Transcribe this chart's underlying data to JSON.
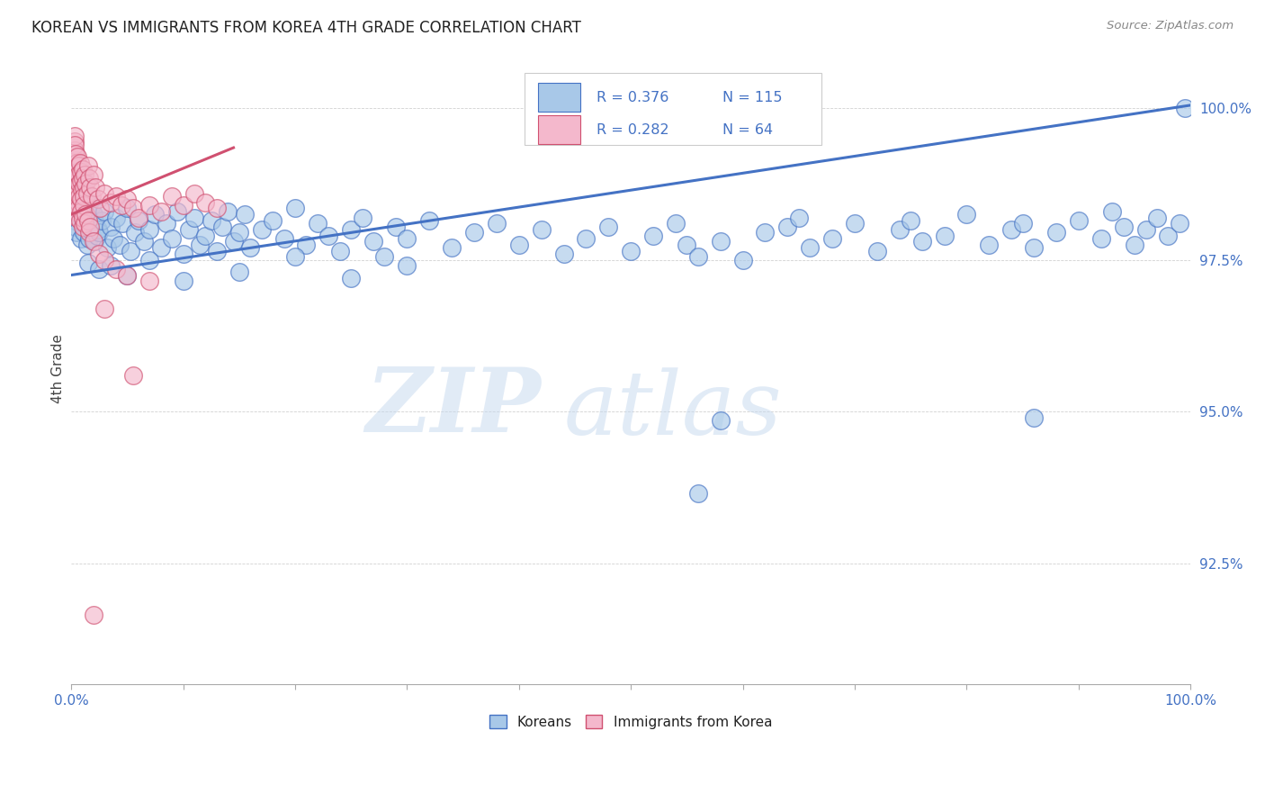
{
  "title": "KOREAN VS IMMIGRANTS FROM KOREA 4TH GRADE CORRELATION CHART",
  "source": "Source: ZipAtlas.com",
  "ylabel": "4th Grade",
  "legend_label1": "Koreans",
  "legend_label2": "Immigrants from Korea",
  "r1": 0.376,
  "n1": 115,
  "r2": 0.282,
  "n2": 64,
  "color1": "#a8c8e8",
  "color2": "#f4b8cc",
  "line_color1": "#4472c4",
  "line_color2": "#d05070",
  "ytick_values": [
    92.5,
    95.0,
    97.5,
    100.0
  ],
  "xlim": [
    0.0,
    100.0
  ],
  "ylim": [
    90.5,
    100.9
  ],
  "watermark_zip": "ZIP",
  "watermark_atlas": "atlas",
  "blue_line": [
    [
      0.0,
      97.25
    ],
    [
      100.0,
      100.05
    ]
  ],
  "pink_line": [
    [
      0.0,
      98.25
    ],
    [
      14.5,
      99.35
    ]
  ],
  "blue_scatter": [
    [
      0.3,
      98.15
    ],
    [
      0.4,
      98.05
    ],
    [
      0.5,
      97.95
    ],
    [
      0.6,
      98.25
    ],
    [
      0.7,
      98.45
    ],
    [
      0.8,
      98.35
    ],
    [
      0.9,
      97.85
    ],
    [
      1.0,
      98.1
    ],
    [
      1.1,
      97.95
    ],
    [
      1.2,
      98.3
    ],
    [
      1.3,
      98.2
    ],
    [
      1.4,
      97.75
    ],
    [
      1.5,
      98.15
    ],
    [
      1.6,
      97.85
    ],
    [
      1.7,
      98.0
    ],
    [
      1.8,
      98.4
    ],
    [
      2.0,
      98.25
    ],
    [
      2.1,
      97.8
    ],
    [
      2.2,
      98.1
    ],
    [
      2.3,
      97.9
    ],
    [
      2.4,
      98.0
    ],
    [
      2.5,
      97.95
    ],
    [
      2.7,
      98.15
    ],
    [
      3.0,
      98.3
    ],
    [
      3.2,
      97.7
    ],
    [
      3.5,
      98.05
    ],
    [
      3.8,
      97.85
    ],
    [
      4.0,
      98.2
    ],
    [
      4.3,
      97.75
    ],
    [
      4.6,
      98.1
    ],
    [
      5.0,
      98.35
    ],
    [
      5.3,
      97.65
    ],
    [
      5.7,
      97.95
    ],
    [
      6.0,
      98.15
    ],
    [
      6.5,
      97.8
    ],
    [
      7.0,
      98.0
    ],
    [
      7.5,
      98.25
    ],
    [
      8.0,
      97.7
    ],
    [
      8.5,
      98.1
    ],
    [
      9.0,
      97.85
    ],
    [
      9.5,
      98.3
    ],
    [
      10.0,
      97.6
    ],
    [
      10.5,
      98.0
    ],
    [
      11.0,
      98.2
    ],
    [
      11.5,
      97.75
    ],
    [
      12.0,
      97.9
    ],
    [
      12.5,
      98.15
    ],
    [
      13.0,
      97.65
    ],
    [
      13.5,
      98.05
    ],
    [
      14.0,
      98.3
    ],
    [
      14.5,
      97.8
    ],
    [
      15.0,
      97.95
    ],
    [
      15.5,
      98.25
    ],
    [
      16.0,
      97.7
    ],
    [
      17.0,
      98.0
    ],
    [
      18.0,
      98.15
    ],
    [
      19.0,
      97.85
    ],
    [
      20.0,
      98.35
    ],
    [
      21.0,
      97.75
    ],
    [
      22.0,
      98.1
    ],
    [
      23.0,
      97.9
    ],
    [
      24.0,
      97.65
    ],
    [
      25.0,
      98.0
    ],
    [
      26.0,
      98.2
    ],
    [
      27.0,
      97.8
    ],
    [
      28.0,
      97.55
    ],
    [
      29.0,
      98.05
    ],
    [
      30.0,
      97.85
    ],
    [
      32.0,
      98.15
    ],
    [
      34.0,
      97.7
    ],
    [
      36.0,
      97.95
    ],
    [
      38.0,
      98.1
    ],
    [
      40.0,
      97.75
    ],
    [
      42.0,
      98.0
    ],
    [
      44.0,
      97.6
    ],
    [
      46.0,
      97.85
    ],
    [
      48.0,
      98.05
    ],
    [
      50.0,
      97.65
    ],
    [
      52.0,
      97.9
    ],
    [
      54.0,
      98.1
    ],
    [
      55.0,
      97.75
    ],
    [
      56.0,
      97.55
    ],
    [
      58.0,
      97.8
    ],
    [
      60.0,
      97.5
    ],
    [
      62.0,
      97.95
    ],
    [
      64.0,
      98.05
    ],
    [
      65.0,
      98.2
    ],
    [
      66.0,
      97.7
    ],
    [
      68.0,
      97.85
    ],
    [
      70.0,
      98.1
    ],
    [
      72.0,
      97.65
    ],
    [
      74.0,
      98.0
    ],
    [
      75.0,
      98.15
    ],
    [
      76.0,
      97.8
    ],
    [
      78.0,
      97.9
    ],
    [
      80.0,
      98.25
    ],
    [
      82.0,
      97.75
    ],
    [
      84.0,
      98.0
    ],
    [
      85.0,
      98.1
    ],
    [
      86.0,
      97.7
    ],
    [
      88.0,
      97.95
    ],
    [
      90.0,
      98.15
    ],
    [
      92.0,
      97.85
    ],
    [
      93.0,
      98.3
    ],
    [
      94.0,
      98.05
    ],
    [
      95.0,
      97.75
    ],
    [
      96.0,
      98.0
    ],
    [
      97.0,
      98.2
    ],
    [
      98.0,
      97.9
    ],
    [
      99.0,
      98.1
    ],
    [
      99.5,
      100.0
    ],
    [
      1.5,
      97.45
    ],
    [
      2.5,
      97.35
    ],
    [
      3.5,
      97.4
    ],
    [
      5.0,
      97.25
    ],
    [
      7.0,
      97.5
    ],
    [
      10.0,
      97.15
    ],
    [
      15.0,
      97.3
    ],
    [
      20.0,
      97.55
    ],
    [
      25.0,
      97.2
    ],
    [
      30.0,
      97.4
    ],
    [
      58.0,
      94.85
    ],
    [
      86.0,
      94.9
    ],
    [
      56.0,
      93.65
    ]
  ],
  "pink_scatter": [
    [
      0.3,
      99.45
    ],
    [
      0.35,
      99.3
    ],
    [
      0.4,
      99.15
    ],
    [
      0.45,
      99.0
    ],
    [
      0.5,
      98.85
    ],
    [
      0.3,
      99.55
    ],
    [
      0.35,
      99.4
    ],
    [
      0.4,
      99.25
    ],
    [
      0.45,
      99.1
    ],
    [
      0.5,
      98.95
    ],
    [
      0.3,
      98.7
    ],
    [
      0.35,
      98.55
    ],
    [
      0.4,
      98.4
    ],
    [
      0.45,
      98.6
    ],
    [
      0.5,
      98.3
    ],
    [
      0.55,
      99.2
    ],
    [
      0.6,
      99.05
    ],
    [
      0.65,
      98.9
    ],
    [
      0.7,
      98.75
    ],
    [
      0.55,
      98.2
    ],
    [
      0.6,
      98.45
    ],
    [
      0.65,
      98.35
    ],
    [
      0.7,
      98.55
    ],
    [
      0.8,
      99.1
    ],
    [
      0.85,
      98.95
    ],
    [
      0.9,
      98.8
    ],
    [
      0.95,
      98.65
    ],
    [
      0.8,
      98.15
    ],
    [
      0.85,
      98.5
    ],
    [
      0.9,
      98.3
    ],
    [
      1.0,
      99.0
    ],
    [
      1.05,
      98.85
    ],
    [
      1.1,
      98.7
    ],
    [
      1.15,
      98.55
    ],
    [
      1.0,
      98.05
    ],
    [
      1.05,
      98.2
    ],
    [
      1.1,
      98.4
    ],
    [
      1.2,
      98.9
    ],
    [
      1.3,
      98.75
    ],
    [
      1.4,
      98.6
    ],
    [
      1.2,
      98.1
    ],
    [
      1.3,
      98.25
    ],
    [
      1.5,
      99.05
    ],
    [
      1.6,
      98.85
    ],
    [
      1.7,
      98.7
    ],
    [
      1.8,
      98.55
    ],
    [
      1.5,
      98.15
    ],
    [
      1.6,
      97.95
    ],
    [
      1.7,
      98.05
    ],
    [
      2.0,
      98.9
    ],
    [
      2.2,
      98.7
    ],
    [
      2.4,
      98.5
    ],
    [
      2.6,
      98.35
    ],
    [
      2.0,
      97.8
    ],
    [
      2.5,
      97.6
    ],
    [
      3.0,
      98.6
    ],
    [
      3.5,
      98.45
    ],
    [
      4.0,
      98.55
    ],
    [
      4.5,
      98.4
    ],
    [
      3.0,
      97.5
    ],
    [
      4.0,
      97.35
    ],
    [
      5.0,
      98.5
    ],
    [
      5.5,
      98.35
    ],
    [
      6.0,
      98.2
    ],
    [
      7.0,
      98.4
    ],
    [
      5.0,
      97.25
    ],
    [
      7.0,
      97.15
    ],
    [
      8.0,
      98.3
    ],
    [
      9.0,
      98.55
    ],
    [
      10.0,
      98.4
    ],
    [
      11.0,
      98.6
    ],
    [
      12.0,
      98.45
    ],
    [
      13.0,
      98.35
    ],
    [
      3.0,
      96.7
    ],
    [
      5.5,
      95.6
    ],
    [
      2.0,
      91.65
    ]
  ]
}
